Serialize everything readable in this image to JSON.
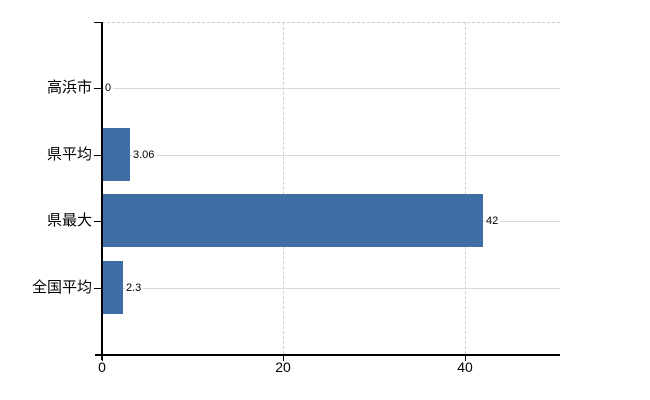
{
  "chart_data": {
    "type": "bar",
    "orientation": "horizontal",
    "categories": [
      "高浜市",
      "県平均",
      "県最大",
      "全国平均"
    ],
    "values": [
      0,
      3.06,
      42,
      2.3
    ],
    "value_labels": [
      "0",
      "3.06",
      "42",
      "2.3"
    ],
    "x_ticks": [
      0,
      20,
      40
    ],
    "x_tick_labels": [
      "0",
      "20",
      "40"
    ],
    "xlim": [
      0,
      50.5
    ],
    "grid": true,
    "legend": false,
    "colors": {
      "bar": "#3f6ea6",
      "hgrid": "#d5ddd5",
      "vgrid": "#ccd2cc",
      "top_border": "#c9cec9",
      "axis": "#000000",
      "text": "#000000",
      "background": "#ffffff"
    }
  }
}
